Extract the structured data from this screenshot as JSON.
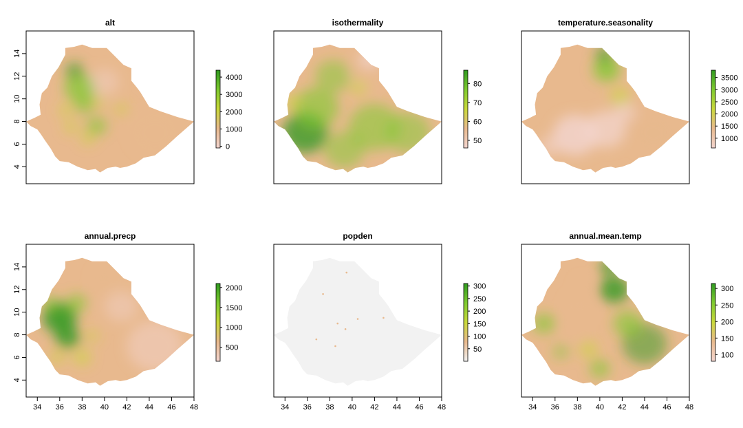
{
  "chart_data": {
    "type": "heatmap",
    "description_panels": "Six raster maps of Ethiopia in a 2x3 grid",
    "x_axis": {
      "range": [
        33,
        48
      ],
      "ticks": [
        34,
        36,
        38,
        40,
        42,
        44,
        46,
        48
      ]
    },
    "y_axis": {
      "range": [
        2.5,
        16
      ],
      "ticks": [
        4,
        6,
        8,
        10,
        12,
        14
      ]
    },
    "panels": [
      {
        "title": "alt",
        "legend": {
          "min": -100,
          "max": 4400,
          "ticks": [
            0,
            1000,
            2000,
            3000,
            4000
          ]
        },
        "colors": [
          "#f3d5d0",
          "#e8b98e",
          "#c9d83a",
          "#7fca2f",
          "#2f9a20"
        ]
      },
      {
        "title": "isothermality",
        "legend": {
          "min": 46,
          "max": 87,
          "ticks": [
            50,
            60,
            70,
            80
          ]
        },
        "colors": [
          "#f3d5d0",
          "#e8b98e",
          "#c9d83a",
          "#7fca2f",
          "#2f9a20"
        ]
      },
      {
        "title": "temperature.seasonality",
        "legend": {
          "min": 600,
          "max": 3800,
          "ticks": [
            1000,
            1500,
            2000,
            2500,
            3000,
            3500
          ]
        },
        "colors": [
          "#f3d5d0",
          "#e8b98e",
          "#c9d83a",
          "#7fca2f",
          "#2f9a20"
        ]
      },
      {
        "title": "annual.precp",
        "legend": {
          "min": 150,
          "max": 2100,
          "ticks": [
            500,
            1000,
            1500,
            2000
          ]
        },
        "colors": [
          "#f3d5d0",
          "#e8b98e",
          "#c9d83a",
          "#7fca2f",
          "#2f9a20"
        ]
      },
      {
        "title": "popden",
        "legend": {
          "min": 0,
          "max": 310,
          "ticks": [
            50,
            100,
            150,
            200,
            250,
            300
          ]
        },
        "colors": [
          "#f2f2f2",
          "#e8b98e",
          "#c9d83a",
          "#7fca2f",
          "#2f9a20"
        ]
      },
      {
        "title": "annual.mean.temp",
        "legend": {
          "min": 80,
          "max": 315,
          "ticks": [
            100,
            150,
            200,
            250,
            300
          ]
        },
        "colors": [
          "#f3d5d0",
          "#e8b98e",
          "#c9d83a",
          "#7fca2f",
          "#2f9a20"
        ]
      }
    ],
    "outline": [
      [
        33.0,
        8.0
      ],
      [
        33.7,
        8.3
      ],
      [
        34.3,
        8.6
      ],
      [
        34.2,
        9.5
      ],
      [
        34.4,
        10.5
      ],
      [
        34.9,
        11.0
      ],
      [
        35.3,
        12.0
      ],
      [
        35.9,
        12.8
      ],
      [
        36.5,
        13.9
      ],
      [
        36.5,
        14.5
      ],
      [
        37.3,
        14.6
      ],
      [
        38.0,
        14.8
      ],
      [
        38.9,
        14.5
      ],
      [
        39.5,
        14.5
      ],
      [
        40.2,
        14.5
      ],
      [
        41.0,
        13.7
      ],
      [
        41.7,
        13.0
      ],
      [
        42.4,
        12.7
      ],
      [
        42.4,
        11.6
      ],
      [
        42.9,
        11.0
      ],
      [
        43.2,
        10.6
      ],
      [
        44.0,
        9.3
      ],
      [
        45.0,
        8.9
      ],
      [
        46.5,
        8.4
      ],
      [
        48.0,
        8.0
      ],
      [
        46.5,
        6.7
      ],
      [
        45.5,
        5.8
      ],
      [
        44.5,
        5.0
      ],
      [
        43.5,
        4.8
      ],
      [
        42.8,
        4.3
      ],
      [
        42.0,
        4.0
      ],
      [
        41.4,
        3.9
      ],
      [
        41.0,
        4.0
      ],
      [
        40.3,
        3.9
      ],
      [
        39.6,
        3.5
      ],
      [
        39.2,
        3.8
      ],
      [
        38.5,
        3.7
      ],
      [
        37.6,
        4.0
      ],
      [
        36.8,
        4.4
      ],
      [
        36.0,
        4.5
      ],
      [
        35.6,
        4.9
      ],
      [
        35.2,
        5.6
      ],
      [
        34.7,
        6.3
      ],
      [
        34.3,
        6.9
      ],
      [
        34.0,
        7.3
      ],
      [
        33.4,
        7.6
      ]
    ],
    "xlabel": "",
    "ylabel": ""
  }
}
